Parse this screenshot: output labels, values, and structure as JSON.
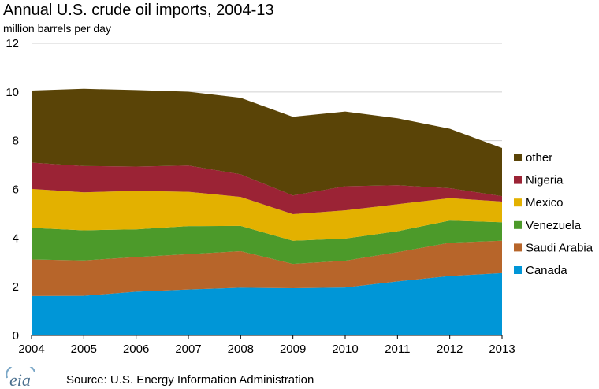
{
  "header": {
    "title": "Annual U.S. crude oil imports, 2004-13",
    "subtitle": "million barrels per day"
  },
  "footer": {
    "logo_icon": "eia-logo",
    "logo_text": "eia",
    "source": "Source: U.S. Energy Information Administration"
  },
  "chart_data": {
    "type": "area",
    "stacked": true,
    "title": "Annual U.S. crude oil imports, 2004-13",
    "ylabel": "million barrels per day",
    "xlabel": "",
    "x": [
      2004,
      2005,
      2006,
      2007,
      2008,
      2009,
      2010,
      2011,
      2012,
      2013
    ],
    "ylim": [
      0,
      12
    ],
    "yticks": [
      0,
      2,
      4,
      6,
      8,
      10,
      12
    ],
    "grid": "horizontal",
    "legend_position": "right",
    "series": [
      {
        "name": "Canada",
        "color": "#0096d7",
        "values": [
          1.62,
          1.63,
          1.8,
          1.89,
          1.96,
          1.94,
          1.97,
          2.22,
          2.44,
          2.56
        ]
      },
      {
        "name": "Saudi Arabia",
        "color": "#b7652a",
        "values": [
          1.5,
          1.45,
          1.42,
          1.45,
          1.5,
          1.0,
          1.1,
          1.2,
          1.37,
          1.33
        ]
      },
      {
        "name": "Venezuela",
        "color": "#4c9a2a",
        "values": [
          1.3,
          1.24,
          1.14,
          1.15,
          1.04,
          0.95,
          0.91,
          0.86,
          0.91,
          0.76
        ]
      },
      {
        "name": "Mexico",
        "color": "#e3b100",
        "values": [
          1.6,
          1.56,
          1.58,
          1.41,
          1.19,
          1.09,
          1.16,
          1.11,
          0.92,
          0.85
        ]
      },
      {
        "name": "Nigeria",
        "color": "#9b2335",
        "values": [
          1.08,
          1.08,
          1.0,
          1.08,
          0.93,
          0.77,
          0.99,
          0.78,
          0.41,
          0.22
        ]
      },
      {
        "name": "other",
        "color": "#5a4407",
        "values": [
          2.96,
          3.17,
          3.14,
          3.03,
          3.14,
          3.23,
          3.07,
          2.75,
          2.44,
          1.98
        ]
      }
    ],
    "legend_order": [
      "other",
      "Nigeria",
      "Mexico",
      "Venezuela",
      "Saudi Arabia",
      "Canada"
    ]
  }
}
